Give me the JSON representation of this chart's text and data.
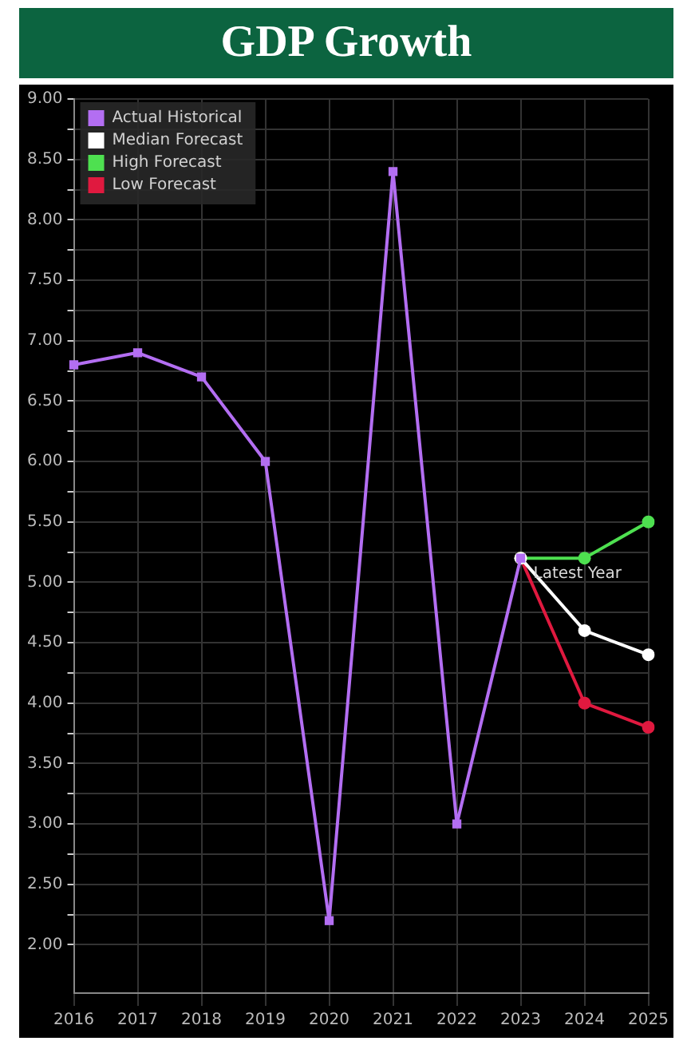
{
  "chart_data": {
    "type": "line",
    "title": "GDP Growth",
    "categories": [
      "2016",
      "2017",
      "2018",
      "2019",
      "2020",
      "2021",
      "2022",
      "2023",
      "2024",
      "2025"
    ],
    "series": [
      {
        "name": "Actual Historical",
        "color": "#b36ef2",
        "marker": "square",
        "values": [
          6.8,
          6.9,
          6.7,
          6.0,
          2.2,
          8.4,
          3.0,
          5.2,
          null,
          null
        ]
      },
      {
        "name": "Median Forecast",
        "color": "#ffffff",
        "marker": "circle",
        "values": [
          null,
          null,
          null,
          null,
          null,
          null,
          null,
          5.2,
          4.6,
          4.4
        ]
      },
      {
        "name": "High Forecast",
        "color": "#4ee050",
        "marker": "circle",
        "values": [
          null,
          null,
          null,
          null,
          null,
          null,
          null,
          5.2,
          5.2,
          5.5
        ]
      },
      {
        "name": "Low Forecast",
        "color": "#e0193f",
        "marker": "circle",
        "values": [
          null,
          null,
          null,
          null,
          null,
          null,
          null,
          5.2,
          4.0,
          3.8
        ]
      }
    ],
    "annotations": [
      {
        "text": "Latest Year",
        "x": "2023",
        "y": 5.2
      }
    ],
    "ylim": [
      1.6,
      9.0
    ],
    "yticks": [
      {
        "value": 2.0,
        "label": "2.00"
      },
      {
        "value": 2.25,
        "label": null
      },
      {
        "value": 2.5,
        "label": "2.50"
      },
      {
        "value": 2.75,
        "label": null
      },
      {
        "value": 3.0,
        "label": "3.00"
      },
      {
        "value": 3.25,
        "label": null
      },
      {
        "value": 3.5,
        "label": "3.50"
      },
      {
        "value": 3.75,
        "label": null
      },
      {
        "value": 4.0,
        "label": "4.00"
      },
      {
        "value": 4.25,
        "label": null
      },
      {
        "value": 4.5,
        "label": "4.50"
      },
      {
        "value": 4.75,
        "label": null
      },
      {
        "value": 5.0,
        "label": "5.00"
      },
      {
        "value": 5.25,
        "label": null
      },
      {
        "value": 5.5,
        "label": "5.50"
      },
      {
        "value": 5.75,
        "label": null
      },
      {
        "value": 6.0,
        "label": "6.00"
      },
      {
        "value": 6.25,
        "label": null
      },
      {
        "value": 6.5,
        "label": "6.50"
      },
      {
        "value": 6.75,
        "label": null
      },
      {
        "value": 7.0,
        "label": "7.00"
      },
      {
        "value": 7.25,
        "label": null
      },
      {
        "value": 7.5,
        "label": "7.50"
      },
      {
        "value": 7.75,
        "label": null
      },
      {
        "value": 8.0,
        "label": "8.00"
      },
      {
        "value": 8.25,
        "label": null
      },
      {
        "value": 8.5,
        "label": "8.50"
      },
      {
        "value": 8.75,
        "label": null
      },
      {
        "value": 9.0,
        "label": "9.00"
      }
    ],
    "grid": true,
    "legend": "top left"
  }
}
